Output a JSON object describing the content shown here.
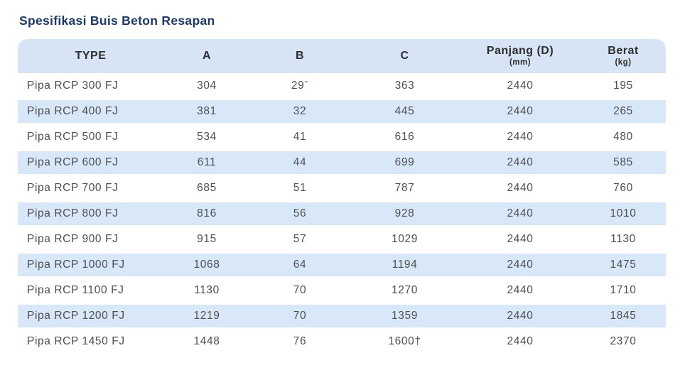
{
  "page": {
    "title": "Spesifikasi Buis Beton Resapan"
  },
  "table": {
    "columns": [
      {
        "key": "type",
        "label": "TYPE",
        "sub": ""
      },
      {
        "key": "a",
        "label": "A",
        "sub": ""
      },
      {
        "key": "b",
        "label": "B",
        "sub": ""
      },
      {
        "key": "c",
        "label": "C",
        "sub": ""
      },
      {
        "key": "d",
        "label": "Panjang (D)",
        "sub": "(mm)"
      },
      {
        "key": "berat",
        "label": "Berat",
        "sub": "(kg)"
      }
    ],
    "rows": [
      [
        "Pipa RCP 300 FJ",
        "304",
        "29ˉ",
        "363",
        "2440",
        "195"
      ],
      [
        "Pipa RCP 400 FJ",
        "381",
        "32",
        "445",
        "2440",
        "265"
      ],
      [
        "Pipa RCP 500 FJ",
        "534",
        "41",
        "616",
        "2440",
        "480"
      ],
      [
        "Pipa RCP 600 FJ",
        "611",
        "44",
        "699",
        "2440",
        "585"
      ],
      [
        "Pipa RCP 700 FJ",
        "685",
        "51",
        "787",
        "2440",
        "760"
      ],
      [
        "Pipa RCP 800 FJ",
        "816",
        "56",
        "928",
        "2440",
        "1010"
      ],
      [
        "Pipa RCP 900 FJ",
        "915",
        "57",
        "1029",
        "2440",
        "1130"
      ],
      [
        "Pipa RCP 1000 FJ",
        "1068",
        "64",
        "1194",
        "2440",
        "1475"
      ],
      [
        "Pipa RCP 1100 FJ",
        "1130",
        "70",
        "1270",
        "2440",
        "1710"
      ],
      [
        "Pipa RCP 1200 FJ",
        "1219",
        "70",
        "1359",
        "2440",
        "1845"
      ],
      [
        "Pipa RCP 1450 FJ",
        "1448",
        "76",
        "1600†",
        "2440",
        "2370"
      ]
    ],
    "colors": {
      "title_color": "#1b3a67",
      "header_bg": "#d6e4f5",
      "row_alt_bg": "#d9e8f8",
      "header_text": "#2e2e2e",
      "body_text": "#4e4f51"
    }
  }
}
